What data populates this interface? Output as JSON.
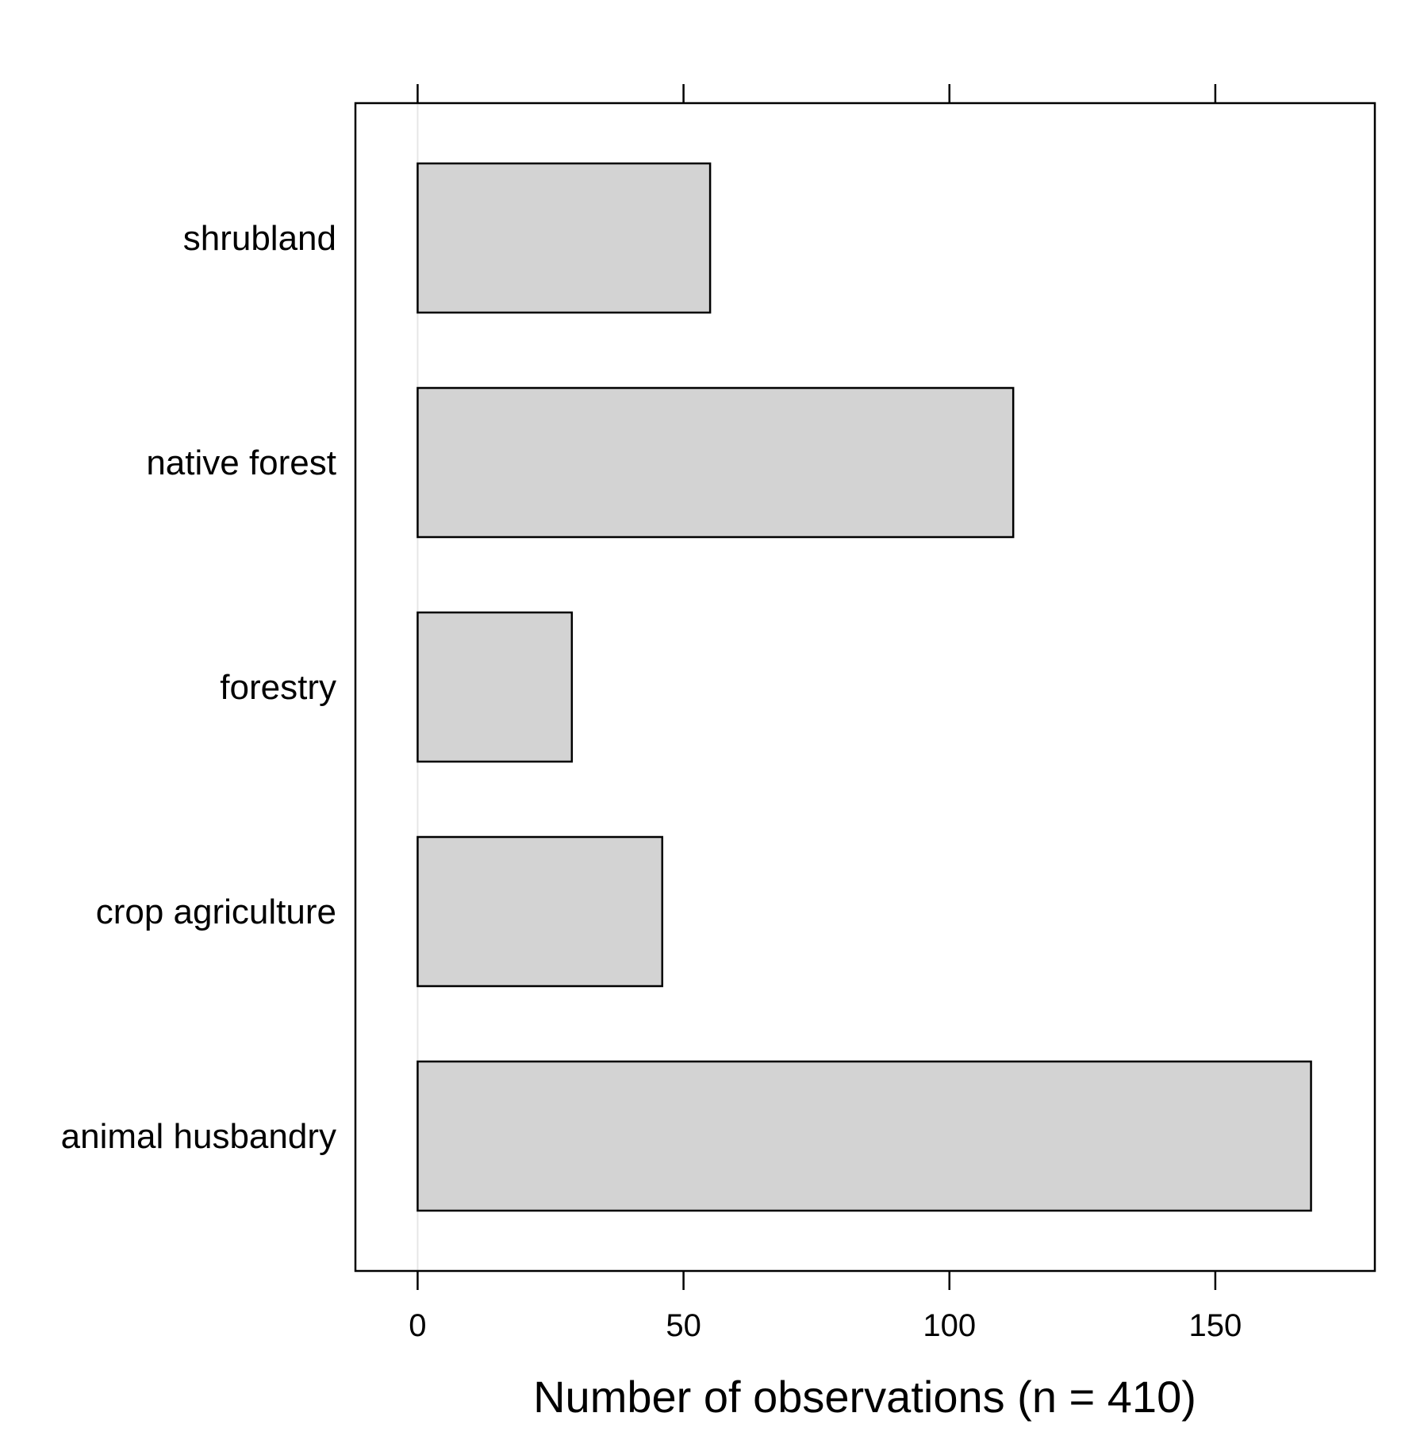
{
  "chart_data": {
    "type": "bar",
    "orientation": "horizontal",
    "categories": [
      "shrubland",
      "native forest",
      "forestry",
      "crop agriculture",
      "animal husbandry"
    ],
    "values": [
      55,
      112,
      29,
      46,
      168
    ],
    "xlabel": "Number of observations (n = 410)",
    "ylabel": "",
    "xlim": [
      -11.7,
      180
    ],
    "x_ticks": [
      0,
      50,
      100,
      150
    ],
    "x_tick_labels": [
      "0",
      "50",
      "100",
      "150"
    ],
    "tick_labels_position": "bottom",
    "tick_marks": "top-and-bottom",
    "reference_line_at_zero": true,
    "grid": false,
    "legend": "none",
    "colors": {
      "bar_fill": "#d3d3d3",
      "bar_stroke": "#000000",
      "frame": "#000000",
      "zero_line": "#e6e6e6"
    }
  }
}
